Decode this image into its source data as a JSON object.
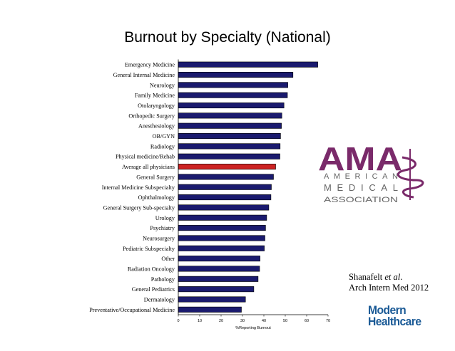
{
  "slide": {
    "title": "Burnout by Specialty (National)"
  },
  "citation": {
    "author": "Shanafelt ",
    "etal": "et al",
    "period": ".",
    "journal": "Arch Intern Med 2012"
  },
  "logos": {
    "ama": {
      "mark": "AMA",
      "line1": "AMERICAN",
      "line2": "MEDICAL",
      "line3": "ASSOCIATION"
    },
    "modern_healthcare": {
      "line1": "Modern",
      "line2": "Healthcare"
    }
  },
  "colors": {
    "bar": "#1a1a6e",
    "highlight": "#cc2222",
    "ama": "#7a2a6a",
    "ama_text": "#666666",
    "modern_healthcare": "#1a5a96"
  },
  "chart_data": {
    "type": "bar",
    "orientation": "horizontal",
    "xlabel": "%Reporting Burnout",
    "xlim": [
      0,
      70
    ],
    "xticks": [
      "0",
      "10",
      "20",
      "30",
      "40",
      "50",
      "60",
      "70"
    ],
    "categories": [
      "Emergency Medicine",
      "General Internal Medicine",
      "Neurology",
      "Family Medicine",
      "Otolaryngology",
      "Orthopedic Surgery",
      "Anesthesiology",
      "OB/GYN",
      "Radiology",
      "Physical medicine/Rehab",
      "Average all physicians",
      "General Surgery",
      "Internal Medicine Subspecialty",
      "Ophthalmology",
      "General Surgery Sub-specialty",
      "Urology",
      "Psychiatry",
      "Neurosurgery",
      "Pediatric Subspecialty",
      "Other",
      "Radiation Oncology",
      "Pathology",
      "General Pediatrics",
      "Dermatology",
      "Preventative/Occupational  Medicine"
    ],
    "values": [
      65.2,
      53.6,
      51.2,
      51.0,
      49.4,
      48.4,
      48.2,
      47.8,
      47.6,
      47.5,
      45.5,
      44.5,
      43.5,
      43.3,
      42.3,
      41.3,
      40.8,
      40.5,
      40.2,
      38.2,
      38.0,
      37.3,
      35.3,
      31.4,
      29.5
    ],
    "highlight_index": 10,
    "grid": false,
    "legend": "none"
  }
}
